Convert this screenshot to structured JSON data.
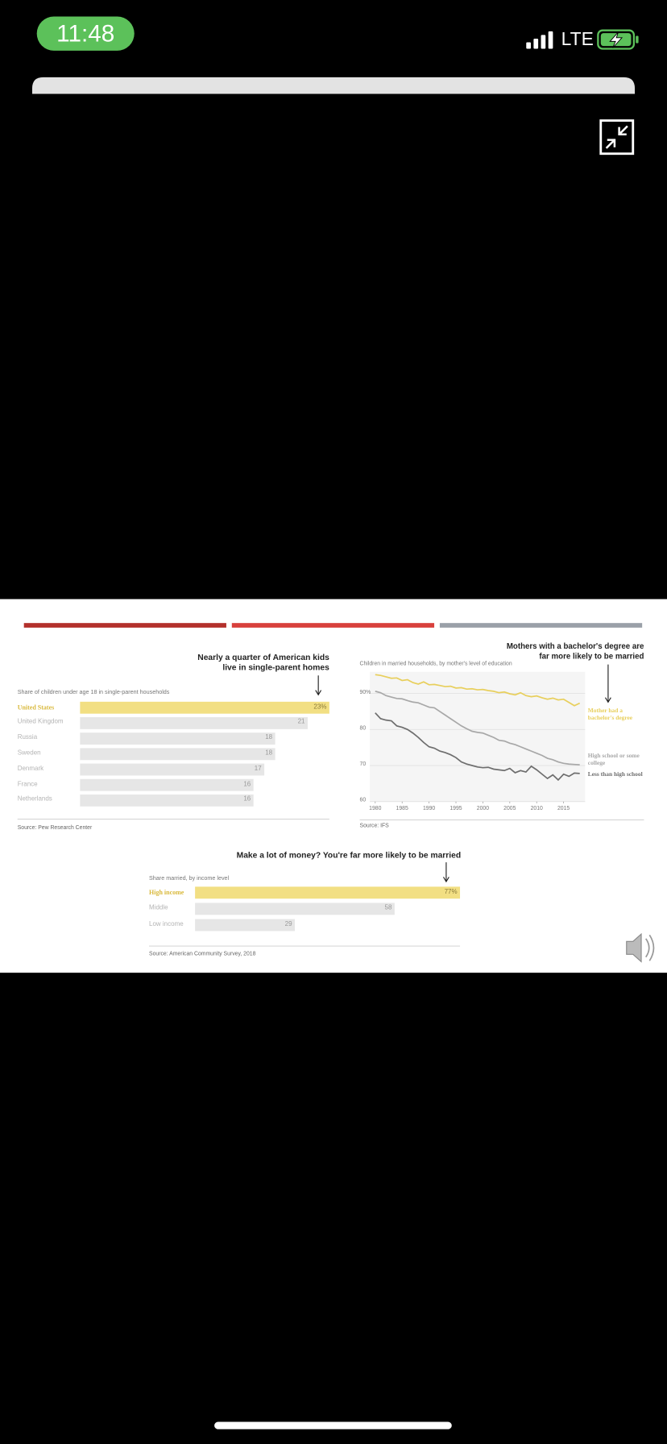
{
  "status_bar": {
    "time": "11:48",
    "network": "LTE"
  },
  "chart_data": [
    {
      "type": "hbar",
      "title": "Nearly a quarter of American kids live in single-parent homes",
      "subtitle": "Share of children under age 18 in single-parent households",
      "categories": [
        "United States",
        "United Kingdom",
        "Russia",
        "Sweden",
        "Denmark",
        "France",
        "Netherlands"
      ],
      "values": [
        23,
        21,
        18,
        18,
        17,
        16,
        16
      ],
      "value_labels": [
        "23%",
        "21",
        "18",
        "18",
        "17",
        "16",
        "16"
      ],
      "colors": [
        "#f2df83",
        "#e6e6e6",
        "#e6e6e6",
        "#e6e6e6",
        "#e6e6e6",
        "#e6e6e6",
        "#e6e6e6"
      ],
      "label_colors": [
        "#d9b93c",
        "#b4b4b4",
        "#b4b4b4",
        "#b4b4b4",
        "#b4b4b4",
        "#b4b4b4",
        "#b4b4b4"
      ],
      "source": "Source: Pew Research Center"
    },
    {
      "type": "line",
      "title": "Mothers with a bachelor's degree are far more likely to be married",
      "subtitle": "Children in married households, by mother's level of education",
      "x": [
        1980,
        1981,
        1982,
        1983,
        1984,
        1985,
        1986,
        1987,
        1988,
        1989,
        1990,
        1991,
        1992,
        1993,
        1994,
        1995,
        1996,
        1997,
        1998,
        1999,
        2000,
        2001,
        2002,
        2003,
        2004,
        2005,
        2006,
        2007,
        2008,
        2009,
        2010,
        2011,
        2012,
        2013,
        2014,
        2015,
        2016,
        2017,
        2018
      ],
      "xlim": [
        1979,
        2019
      ],
      "xticks": [
        1980,
        1985,
        1990,
        1995,
        2000,
        2005,
        2010,
        2015
      ],
      "ylim": [
        60,
        96
      ],
      "yticks": [
        60,
        70,
        80,
        {
          "value": 90,
          "label": "90%"
        }
      ],
      "grid": true,
      "series": [
        {
          "name": "Mother had a bachelor's degree",
          "color": "#e8cf5c",
          "values": [
            95.2,
            95.0,
            94.6,
            94.2,
            94.3,
            93.6,
            93.8,
            93.0,
            92.6,
            93.2,
            92.4,
            92.5,
            92.2,
            91.9,
            92.0,
            91.5,
            91.6,
            91.2,
            91.3,
            91.0,
            91.1,
            90.8,
            90.6,
            90.2,
            90.4,
            89.9,
            89.6,
            90.2,
            89.4,
            89.1,
            89.3,
            88.8,
            88.4,
            88.7,
            88.2,
            88.4,
            87.5,
            86.6,
            87.3
          ]
        },
        {
          "name": "High school or some college",
          "color": "#a8a8a8",
          "values": [
            90.6,
            90.2,
            89.4,
            89.0,
            88.6,
            88.5,
            88.0,
            87.6,
            87.4,
            86.8,
            86.2,
            86.0,
            85.0,
            84.0,
            83.0,
            82.0,
            81.0,
            80.2,
            79.5,
            79.2,
            79.0,
            78.4,
            77.8,
            77.0,
            76.8,
            76.2,
            75.8,
            75.2,
            74.6,
            74.0,
            73.4,
            72.8,
            72.0,
            71.6,
            71.0,
            70.6,
            70.4,
            70.3,
            70.2
          ]
        },
        {
          "name": "Less than high school",
          "color": "#6e6e6e",
          "values": [
            84.6,
            83.0,
            82.6,
            82.4,
            81.0,
            80.6,
            80.0,
            79.0,
            77.8,
            76.4,
            75.2,
            74.8,
            74.0,
            73.6,
            73.0,
            72.2,
            71.0,
            70.4,
            70.0,
            69.6,
            69.4,
            69.5,
            69.0,
            68.8,
            68.6,
            69.2,
            68.0,
            68.6,
            68.2,
            69.8,
            68.8,
            67.6,
            66.4,
            67.4,
            66.0,
            67.6,
            67.0,
            67.9,
            67.8
          ]
        }
      ],
      "source": "Source: IFS"
    },
    {
      "type": "hbar",
      "title": "Make a lot of money? You're far more likely to be married",
      "subtitle": "Share married, by income level",
      "categories": [
        "High income",
        "Middle",
        "Low income"
      ],
      "values": [
        77,
        58,
        29
      ],
      "value_labels": [
        "77%",
        "58",
        "29"
      ],
      "colors": [
        "#f2df83",
        "#e6e6e6",
        "#e6e6e6"
      ],
      "label_colors": [
        "#d9b93c",
        "#b4b4b4",
        "#b4b4b4"
      ],
      "source": "Source: American Community Survey, 2018"
    }
  ]
}
